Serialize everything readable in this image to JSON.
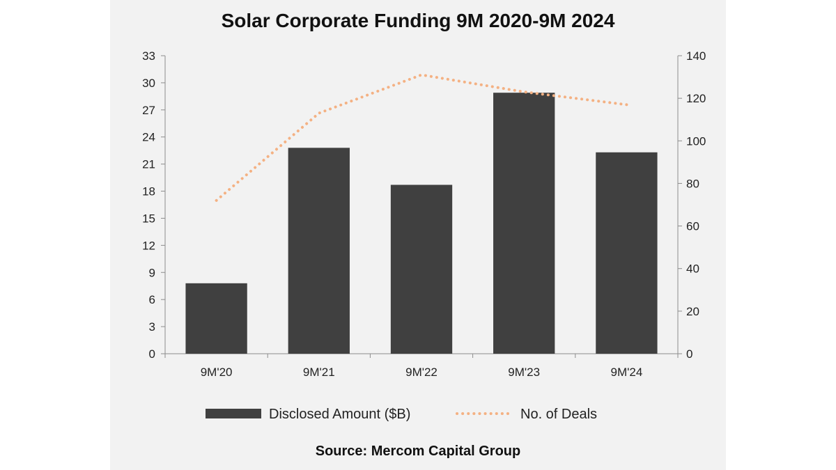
{
  "chart_data": {
    "type": "bar",
    "title": "Solar Corporate Funding 9M 2020-9M 2024",
    "categories": [
      "9M'20",
      "9M'21",
      "9M'22",
      "9M'23",
      "9M'24"
    ],
    "series": [
      {
        "name": "Disclosed Amount ($B)",
        "type": "bar",
        "axis": "left",
        "color": "#404040",
        "values": [
          7.8,
          22.8,
          18.7,
          28.9,
          22.3
        ]
      },
      {
        "name": "No. of Deals",
        "type": "line",
        "style": "dotted",
        "axis": "right",
        "color": "#f4b183",
        "values": [
          72,
          113,
          131,
          123,
          117
        ]
      }
    ],
    "y_left": {
      "range": [
        0,
        33
      ],
      "ticks": [
        0,
        3,
        6,
        9,
        12,
        15,
        18,
        21,
        24,
        27,
        30,
        33
      ]
    },
    "y_right": {
      "range": [
        0,
        140
      ],
      "ticks": [
        0,
        20,
        40,
        60,
        80,
        100,
        120,
        140
      ]
    },
    "grid": false,
    "legend_position": "bottom",
    "source": "Source: Mercom Capital Group"
  }
}
